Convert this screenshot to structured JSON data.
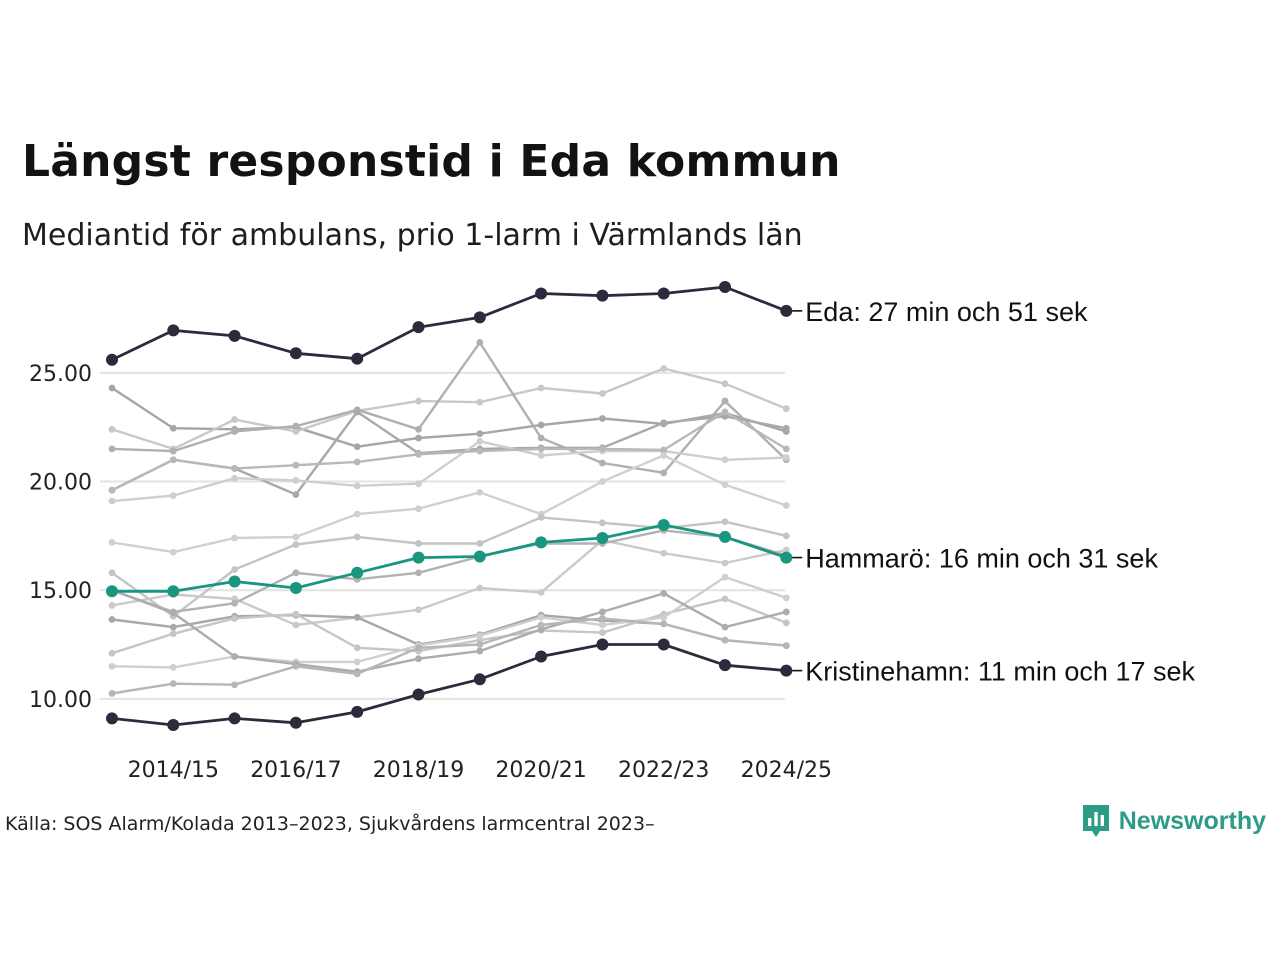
{
  "title": "Längst responstid i Eda kommun",
  "subtitle": "Mediantid för ambulans, prio 1-larm i Värmlands län",
  "source": "Källa: SOS Alarm/Kolada 2013–2023, Sjukvårdens larmcentral 2023–",
  "brand": {
    "name": "Newsworthy",
    "logo_icon": "newsworthy-logo-icon",
    "color": "#2d9c87"
  },
  "colors": {
    "eda": "#2b2b3b",
    "hammaro": "#1a9580",
    "kristinehamn": "#2b2b3b",
    "other": "#b4b4b4",
    "grid": "#e3e3e3"
  },
  "chart_data": {
    "type": "line",
    "title": "Längst responstid i Eda kommun",
    "subtitle": "Mediantid för ambulans, prio 1-larm i Värmlands län",
    "x": [
      "2013/14",
      "2014/15",
      "2015/16",
      "2016/17",
      "2017/18",
      "2018/19",
      "2019/20",
      "2020/21",
      "2021/22",
      "2022/23",
      "2023/24",
      "2024/25"
    ],
    "x_tick_labels": [
      "2014/15",
      "2016/17",
      "2018/19",
      "2020/21",
      "2022/23",
      "2024/25"
    ],
    "y_ticks": [
      "10.00",
      "15.00",
      "20.00",
      "25.00"
    ],
    "y_tick_values": [
      10,
      15,
      20,
      25
    ],
    "ylim": [
      8.2,
      29.5
    ],
    "grid": true,
    "highlighted": [
      {
        "name": "Eda",
        "label": "Eda: 27 min och 51 sek",
        "color": "#2b2b3b",
        "values": [
          25.6,
          26.95,
          26.7,
          25.9,
          25.65,
          27.1,
          27.55,
          28.65,
          28.55,
          28.65,
          28.95,
          27.85
        ]
      },
      {
        "name": "Hammarö",
        "label": "Hammarö: 16 min och 31 sek",
        "color": "#1a9580",
        "values": [
          14.95,
          14.95,
          15.4,
          15.1,
          15.8,
          16.5,
          16.55,
          17.2,
          17.4,
          18.0,
          17.45,
          16.5
        ]
      },
      {
        "name": "Kristinehamn",
        "label": "Kristinehamn: 11 min och 17 sek",
        "color": "#2b2b3b",
        "values": [
          9.1,
          8.8,
          9.1,
          8.9,
          9.4,
          10.2,
          10.9,
          11.95,
          12.5,
          12.5,
          11.55,
          11.3
        ]
      }
    ],
    "series": [
      {
        "values": [
          24.3,
          22.45,
          22.4,
          22.5,
          21.6,
          22.0,
          22.2,
          22.6,
          22.9,
          22.65,
          23.15,
          22.3
        ],
        "shade": "#a6a6a6"
      },
      {
        "values": [
          22.4,
          21.5,
          22.85,
          22.3,
          23.25,
          23.7,
          23.65,
          24.3,
          24.05,
          25.2,
          24.5,
          23.35
        ],
        "shade": "#c8c8c8"
      },
      {
        "values": [
          21.5,
          21.4,
          22.3,
          22.55,
          23.3,
          22.4,
          26.4,
          22.0,
          20.85,
          20.4,
          23.7,
          21.0
        ],
        "shade": "#b0b0b0"
      },
      {
        "values": [
          19.6,
          21.0,
          20.6,
          19.4,
          23.2,
          21.3,
          21.5,
          21.55,
          21.55,
          22.7,
          23.0,
          22.45
        ],
        "shade": "#a9a9a9"
      },
      {
        "values": [
          19.1,
          19.35,
          20.15,
          20.05,
          19.8,
          19.9,
          21.85,
          21.2,
          21.4,
          21.4,
          21.0,
          21.1
        ],
        "shade": "#cecece"
      },
      {
        "values": [
          19.6,
          21.0,
          20.6,
          20.75,
          20.9,
          21.25,
          21.4,
          21.5,
          21.5,
          21.45,
          23.2,
          21.5
        ],
        "shade": "#b8b8b8"
      },
      {
        "values": [
          17.2,
          16.75,
          17.4,
          17.45,
          18.5,
          18.75,
          19.5,
          18.5,
          20.0,
          21.2,
          19.85,
          18.9
        ],
        "shade": "#d0d0d0"
      },
      {
        "values": [
          15.8,
          13.8,
          15.95,
          17.1,
          17.45,
          17.15,
          17.15,
          18.35,
          18.1,
          17.85,
          18.15,
          17.5
        ],
        "shade": "#c4c4c4"
      },
      {
        "values": [
          14.3,
          14.8,
          14.6,
          13.4,
          13.75,
          14.1,
          15.1,
          14.9,
          17.3,
          16.7,
          16.25,
          16.85
        ],
        "shade": "#cacaca"
      },
      {
        "values": [
          15.0,
          14.0,
          14.4,
          15.8,
          15.5,
          15.8,
          16.55,
          17.15,
          17.15,
          17.75,
          17.45,
          16.6
        ],
        "shade": "#b2b2b2"
      },
      {
        "values": [
          13.65,
          13.3,
          13.8,
          13.85,
          13.75,
          12.5,
          12.95,
          13.85,
          13.6,
          13.45,
          12.7,
          12.45
        ],
        "shade": "#a8a8a8"
      },
      {
        "values": [
          12.1,
          13.0,
          13.7,
          13.9,
          12.35,
          12.2,
          12.7,
          13.15,
          13.05,
          13.9,
          14.6,
          13.5
        ],
        "shade": "#c6c6c6"
      },
      {
        "values": [
          11.5,
          11.45,
          11.95,
          11.7,
          11.7,
          12.45,
          12.9,
          13.75,
          13.4,
          13.75,
          15.6,
          14.65
        ],
        "shade": "#cfcfcf"
      },
      {
        "values": [
          15.0,
          13.95,
          11.95,
          11.6,
          11.25,
          11.85,
          12.2,
          13.2,
          14.0,
          14.85,
          13.3,
          14.0
        ],
        "shade": "#acacac"
      },
      {
        "values": [
          10.25,
          10.7,
          10.65,
          11.5,
          11.15,
          12.35,
          12.5,
          13.4,
          13.7,
          13.45,
          12.7,
          12.45
        ],
        "shade": "#b6b6b6"
      }
    ]
  }
}
